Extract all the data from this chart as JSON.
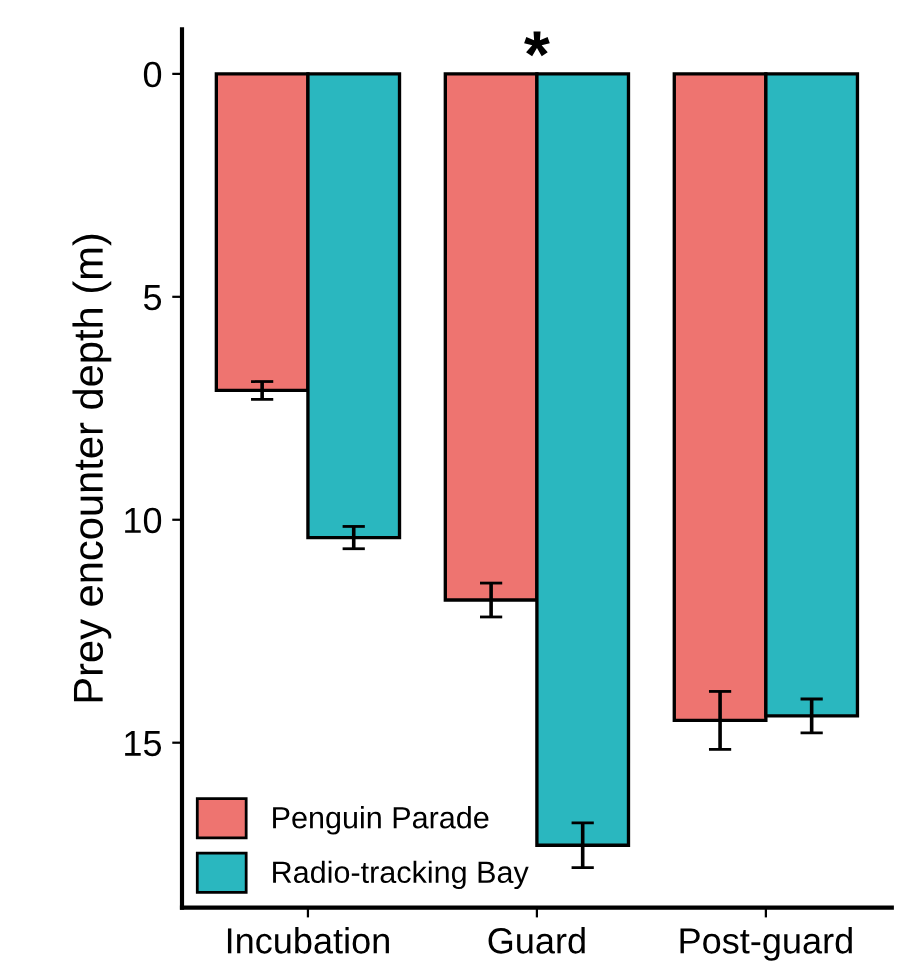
{
  "chart_data": {
    "type": "bar",
    "ylabel": "Prey encounter depth (m)",
    "categories": [
      "Incubation",
      "Guard",
      "Post-guard"
    ],
    "series": [
      {
        "name": "Penguin Parade",
        "color": "#ee7470",
        "values": [
          7.1,
          11.8,
          14.5
        ],
        "errors": [
          0.2,
          0.38,
          0.65
        ]
      },
      {
        "name": "Radio-tracking Bay",
        "color": "#2ab7bf",
        "values": [
          10.4,
          17.3,
          14.4
        ],
        "errors": [
          0.25,
          0.5,
          0.38
        ]
      }
    ],
    "ylim": [
      18.7,
      -1.0
    ],
    "yticks": [
      0,
      5,
      10,
      15
    ],
    "grid": false,
    "legend": "bottom left",
    "annotations": [
      "*"
    ]
  }
}
